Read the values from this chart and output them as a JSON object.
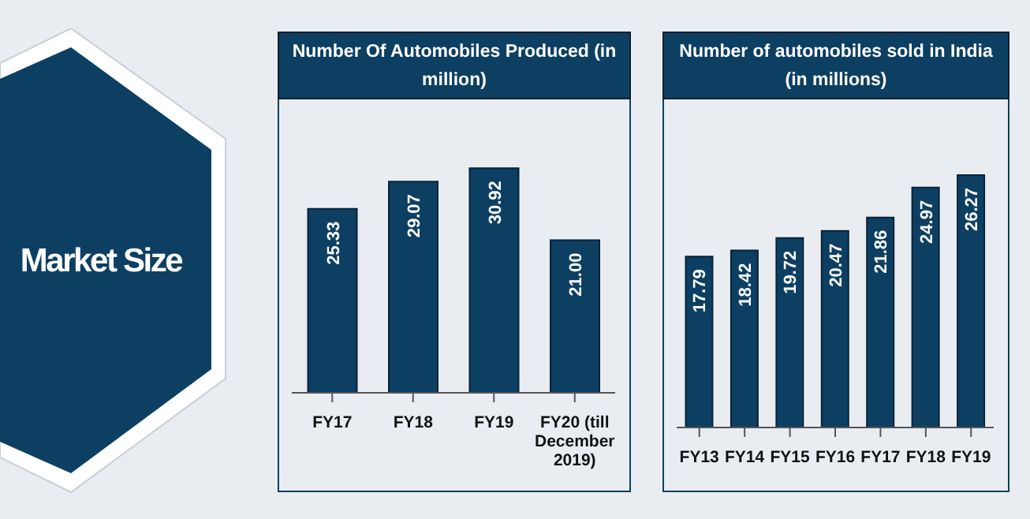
{
  "chart_data": [
    {
      "type": "other",
      "title": "Market Size"
    },
    {
      "type": "bar",
      "title": "Number Of Automobiles Produced (in million)",
      "categories": [
        "FY17",
        "FY18",
        "FY19",
        "FY20 (till December 2019)"
      ],
      "values": [
        25.33,
        29.07,
        30.92,
        21.0
      ],
      "value_labels": [
        "25.33",
        "29.07",
        "30.92",
        "21.00"
      ],
      "color": "#0d3f63",
      "tick_labels": "x"
    },
    {
      "type": "bar",
      "title": "Number of automobiles sold in India (in millions)",
      "categories": [
        "FY13",
        "FY14",
        "FY15",
        "FY16",
        "FY17",
        "FY18",
        "FY19"
      ],
      "values": [
        17.79,
        18.42,
        19.72,
        20.47,
        21.86,
        24.97,
        26.27
      ],
      "value_labels": [
        "17.79",
        "18.42",
        "19.72",
        "20.47",
        "21.86",
        "24.97",
        "26.27"
      ],
      "color": "#0d3f63",
      "tick_labels": "x"
    }
  ]
}
